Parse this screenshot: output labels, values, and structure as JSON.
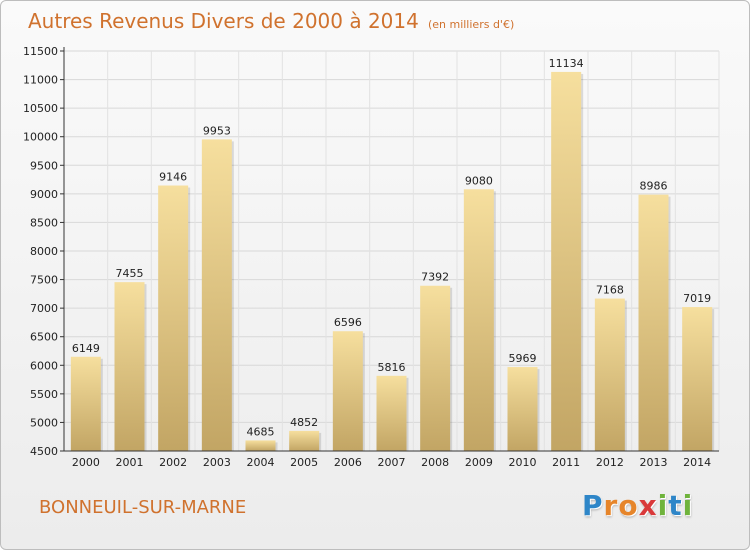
{
  "title": "Autres Revenus Divers de 2000 à 2014",
  "subtitle": "(en milliers d'€)",
  "commune": "BONNEUIL-SUR-MARNE",
  "logo": {
    "letters": [
      "P",
      "r",
      "o",
      "x",
      "i",
      "t",
      "i"
    ],
    "colors": [
      "#2e86c8",
      "#e6852a",
      "#e6852a",
      "#d9393a",
      "#6fb33c",
      "#2e86c8",
      "#6fb33c"
    ]
  },
  "colors": {
    "accent": "#d0722e",
    "bar_light": "#f6df9e",
    "bar_dark": "#c2a564"
  },
  "chart_data": {
    "type": "bar",
    "title": "Autres Revenus Divers de 2000 à 2014",
    "subtitle": "(en milliers d'€)",
    "categories": [
      "2000",
      "2001",
      "2002",
      "2003",
      "2004",
      "2005",
      "2006",
      "2007",
      "2008",
      "2009",
      "2010",
      "2011",
      "2012",
      "2013",
      "2014"
    ],
    "values": [
      6149,
      7455,
      9146,
      9953,
      4685,
      4852,
      6596,
      5816,
      7392,
      9080,
      5969,
      11134,
      7168,
      8986,
      7019
    ],
    "ylim": [
      4500,
      11500
    ],
    "yticks": [
      4500,
      5000,
      5500,
      6000,
      6500,
      7000,
      7500,
      8000,
      8500,
      9000,
      9500,
      10000,
      10500,
      11000,
      11500
    ],
    "grid": true,
    "legend": "none"
  }
}
